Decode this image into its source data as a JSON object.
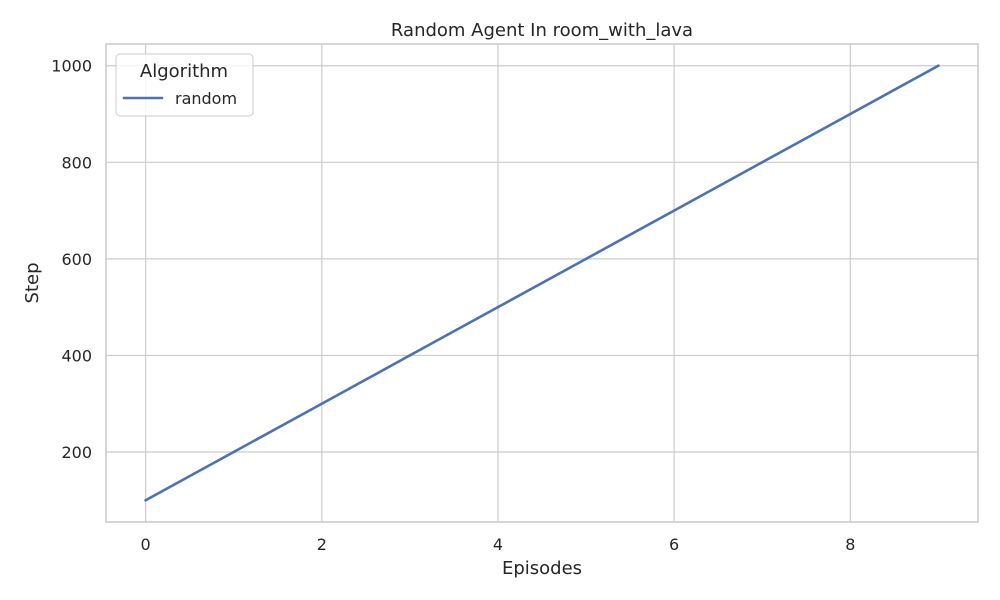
{
  "chart_data": {
    "type": "line",
    "title": "Random Agent In room_with_lava",
    "xlabel": "Episodes",
    "ylabel": "Step",
    "xlim": [
      -0.45,
      9.45
    ],
    "ylim": [
      55,
      1045
    ],
    "xticks": [
      0,
      2,
      4,
      6,
      8
    ],
    "yticks": [
      200,
      400,
      600,
      800,
      1000
    ],
    "grid": true,
    "legend": {
      "title": "Algorithm",
      "placement": "top-left"
    },
    "series": [
      {
        "name": "random",
        "color": "#4c72b0",
        "x": [
          0,
          1,
          2,
          3,
          4,
          5,
          6,
          7,
          8,
          9
        ],
        "y": [
          100,
          200,
          300,
          400,
          500,
          600,
          700,
          800,
          900,
          1000
        ]
      }
    ]
  }
}
